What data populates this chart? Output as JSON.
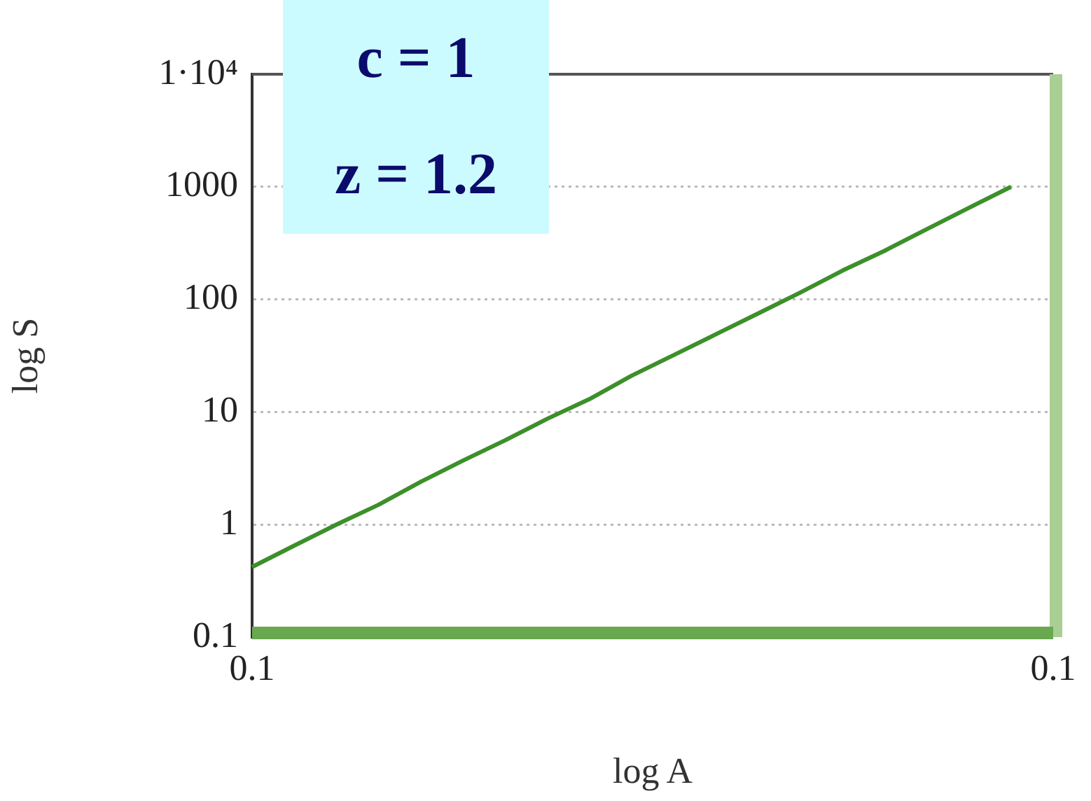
{
  "chart_data": {
    "type": "line",
    "xlabel": "log A",
    "ylabel": "log S",
    "annotations": [
      "c = 1",
      "z = 1.2"
    ],
    "categories": [
      "0.1",
      null,
      null,
      null,
      null,
      null,
      null,
      null,
      null,
      null,
      null,
      null,
      null,
      null,
      null,
      null,
      null,
      null,
      null,
      "0.1"
    ],
    "series": [
      {
        "color": "#3d8f2a",
        "values": [
          0.42,
          0.65,
          1.0,
          1.5,
          2.4,
          3.7,
          5.6,
          8.7,
          13,
          21,
          32,
          49,
          75,
          115,
          180,
          270,
          420,
          650,
          1000,
          null
        ]
      }
    ],
    "ylim": [
      0.1,
      10000
    ],
    "yticks": [
      0.1,
      1,
      10,
      100,
      1000,
      {
        "value": 10000,
        "label": "1·10⁴"
      }
    ],
    "log": "y",
    "grid": "y",
    "marker": "none",
    "line_style": "solid",
    "legend": false
  }
}
